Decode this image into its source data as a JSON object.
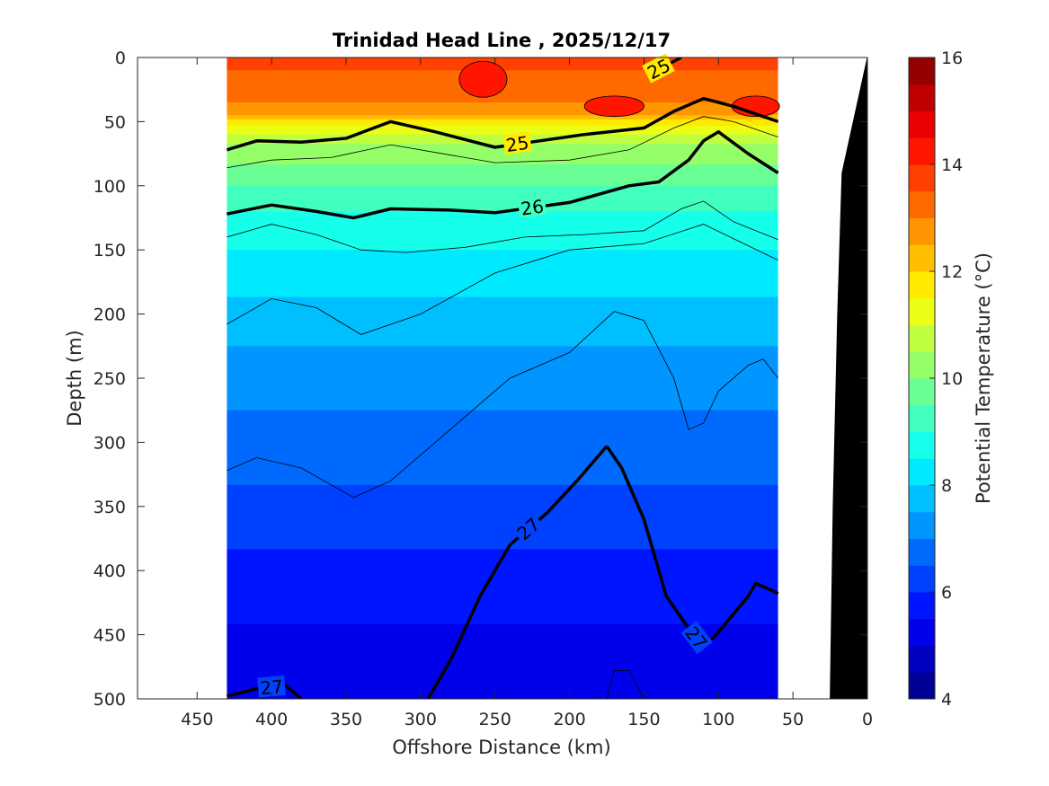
{
  "chart_data": {
    "type": "contour",
    "title": "Trinidad Head Line , 2025/12/17",
    "xlabel": "Offshore Distance (km)",
    "ylabel": "Depth (m)",
    "xlim": [
      490,
      0
    ],
    "ylim": [
      0,
      500
    ],
    "x_ticks": [
      450,
      400,
      350,
      300,
      250,
      200,
      150,
      100,
      50,
      0
    ],
    "y_ticks": [
      0,
      50,
      100,
      150,
      200,
      250,
      300,
      350,
      400,
      450,
      500
    ],
    "x_tick_labels": [
      "450",
      "400",
      "350",
      "300",
      "250",
      "200",
      "150",
      "100",
      "50",
      "0"
    ],
    "y_tick_labels": [
      "0",
      "50",
      "100",
      "150",
      "200",
      "250",
      "300",
      "350",
      "400",
      "450",
      "500"
    ],
    "data_extent_x": [
      430,
      60
    ],
    "colorbar": {
      "label": "Potential Temperature (°C)",
      "range": [
        4,
        16
      ],
      "step": 0.5,
      "ticks": [
        4,
        6,
        8,
        10,
        12,
        14,
        16
      ],
      "tick_labels": [
        "4",
        "6",
        "8",
        "10",
        "12",
        "14",
        "16"
      ]
    },
    "temperature_layers": [
      {
        "depth": 0,
        "temp": 13.6
      },
      {
        "depth": 30,
        "temp": 13.3
      },
      {
        "depth": 45,
        "temp": 12.5
      },
      {
        "depth": 55,
        "temp": 11.2
      },
      {
        "depth": 70,
        "temp": 10.4
      },
      {
        "depth": 90,
        "temp": 9.8
      },
      {
        "depth": 110,
        "temp": 9.2
      },
      {
        "depth": 130,
        "temp": 8.8
      },
      {
        "depth": 160,
        "temp": 8.3
      },
      {
        "depth": 200,
        "temp": 7.8
      },
      {
        "depth": 250,
        "temp": 7.2
      },
      {
        "depth": 300,
        "temp": 6.8
      },
      {
        "depth": 350,
        "temp": 6.3
      },
      {
        "depth": 400,
        "temp": 5.8
      },
      {
        "depth": 450,
        "temp": 5.4
      },
      {
        "depth": 500,
        "temp": 5.0
      }
    ],
    "isopycnals": [
      {
        "sigma": "25",
        "points": [
          [
            430,
            72
          ],
          [
            410,
            65
          ],
          [
            380,
            66
          ],
          [
            350,
            63
          ],
          [
            320,
            50
          ],
          [
            290,
            58
          ],
          [
            250,
            70
          ],
          [
            220,
            65
          ],
          [
            190,
            60
          ],
          [
            150,
            55
          ],
          [
            130,
            42
          ],
          [
            110,
            32
          ],
          [
            90,
            38
          ],
          [
            60,
            50
          ]
        ]
      },
      {
        "sigma": "25",
        "points": [
          [
            145,
            12
          ],
          [
            135,
            6
          ],
          [
            125,
            0
          ]
        ]
      },
      {
        "sigma": "26",
        "points": [
          [
            430,
            122
          ],
          [
            400,
            115
          ],
          [
            370,
            120
          ],
          [
            345,
            125
          ],
          [
            320,
            118
          ],
          [
            280,
            119
          ],
          [
            250,
            121
          ],
          [
            200,
            113
          ],
          [
            160,
            100
          ],
          [
            140,
            97
          ],
          [
            120,
            80
          ],
          [
            110,
            65
          ],
          [
            100,
            58
          ],
          [
            80,
            75
          ],
          [
            60,
            90
          ]
        ]
      },
      {
        "sigma": "27",
        "points": [
          [
            175,
            303
          ],
          [
            165,
            320
          ],
          [
            150,
            360
          ],
          [
            135,
            420
          ],
          [
            120,
            445
          ],
          [
            110,
            460
          ],
          [
            100,
            448
          ],
          [
            80,
            420
          ],
          [
            75,
            410
          ],
          [
            65,
            415
          ],
          [
            60,
            418
          ]
        ]
      },
      {
        "sigma": "27",
        "points": [
          [
            175,
            303
          ],
          [
            195,
            330
          ],
          [
            215,
            355
          ],
          [
            240,
            380
          ],
          [
            260,
            420
          ],
          [
            280,
            470
          ],
          [
            295,
            500
          ]
        ]
      },
      {
        "sigma": "27",
        "points": [
          [
            430,
            498
          ],
          [
            410,
            492
          ],
          [
            390,
            490
          ],
          [
            380,
            500
          ]
        ]
      }
    ],
    "thin_contours": [
      [
        [
          430,
          208
        ],
        [
          400,
          188
        ],
        [
          370,
          195
        ],
        [
          340,
          216
        ],
        [
          300,
          200
        ],
        [
          250,
          168
        ],
        [
          200,
          150
        ],
        [
          150,
          145
        ],
        [
          110,
          130
        ],
        [
          60,
          158
        ]
      ],
      [
        [
          430,
          322
        ],
        [
          410,
          312
        ],
        [
          380,
          320
        ],
        [
          345,
          343
        ],
        [
          320,
          330
        ],
        [
          280,
          290
        ],
        [
          240,
          250
        ],
        [
          200,
          230
        ],
        [
          170,
          198
        ],
        [
          150,
          205
        ],
        [
          130,
          250
        ],
        [
          120,
          290
        ],
        [
          110,
          285
        ],
        [
          100,
          260
        ],
        [
          80,
          240
        ],
        [
          70,
          235
        ],
        [
          60,
          250
        ]
      ],
      [
        [
          430,
          86
        ],
        [
          400,
          80
        ],
        [
          360,
          78
        ],
        [
          320,
          68
        ],
        [
          290,
          74
        ],
        [
          250,
          82
        ],
        [
          200,
          80
        ],
        [
          160,
          72
        ],
        [
          130,
          55
        ],
        [
          110,
          46
        ],
        [
          90,
          50
        ],
        [
          60,
          62
        ]
      ],
      [
        [
          430,
          140
        ],
        [
          400,
          130
        ],
        [
          370,
          138
        ],
        [
          340,
          150
        ],
        [
          310,
          152
        ],
        [
          270,
          148
        ],
        [
          230,
          140
        ],
        [
          190,
          138
        ],
        [
          150,
          135
        ],
        [
          125,
          118
        ],
        [
          110,
          112
        ],
        [
          90,
          128
        ],
        [
          60,
          142
        ]
      ],
      [
        [
          175,
          500
        ],
        [
          170,
          478
        ],
        [
          160,
          478
        ],
        [
          150,
          500
        ]
      ]
    ],
    "warm_cores": [
      {
        "x": 258,
        "depth": 17,
        "rx": 16,
        "ry": 14
      },
      {
        "x": 170,
        "depth": 38,
        "rx": 20,
        "ry": 8
      },
      {
        "x": 75,
        "depth": 38,
        "rx": 16,
        "ry": 8
      }
    ],
    "bathymetry": [
      [
        25,
        500
      ],
      [
        23,
        350
      ],
      [
        20,
        200
      ],
      [
        17,
        90
      ],
      [
        0,
        0
      ],
      [
        0,
        500
      ]
    ]
  }
}
